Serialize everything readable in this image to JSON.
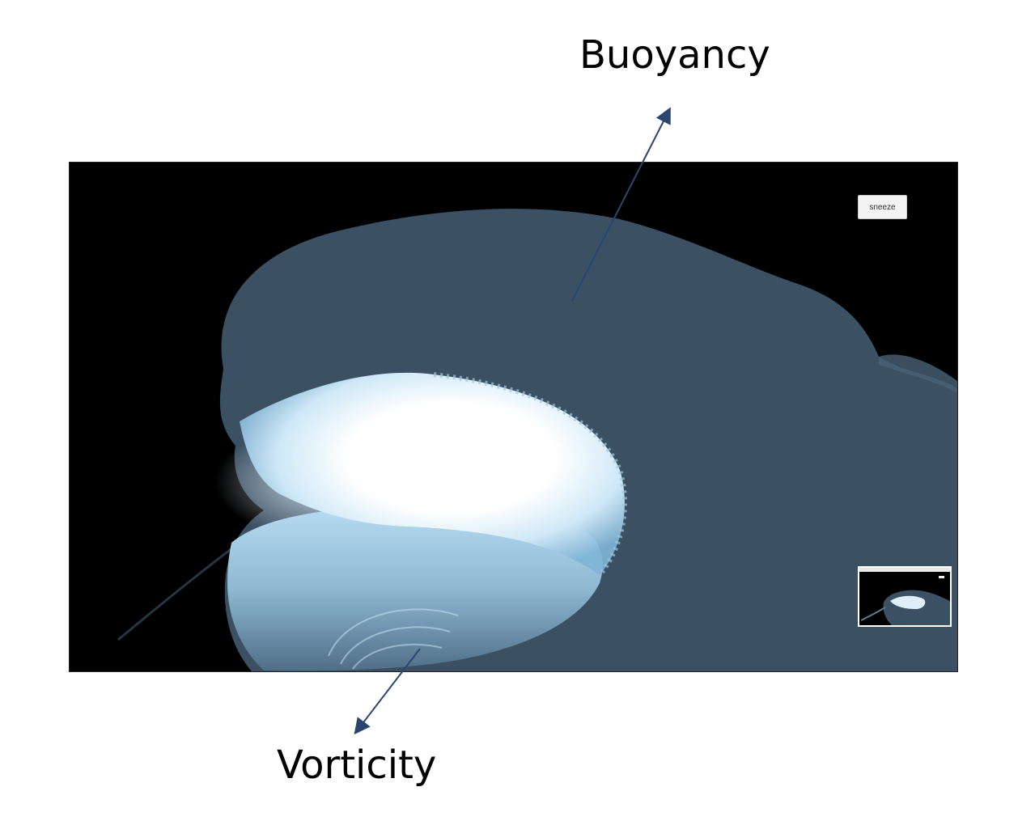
{
  "annotations": {
    "buoyancy": "Buoyancy",
    "vorticity": "Vorticity"
  },
  "simulation": {
    "sneeze_button_label": "sneeze"
  },
  "colors": {
    "plume": "#3b5063",
    "vortex_core": "#ffffff",
    "vortex_edge": "#a9d2ec",
    "background": "#000000",
    "arrow": "#2a4670"
  }
}
